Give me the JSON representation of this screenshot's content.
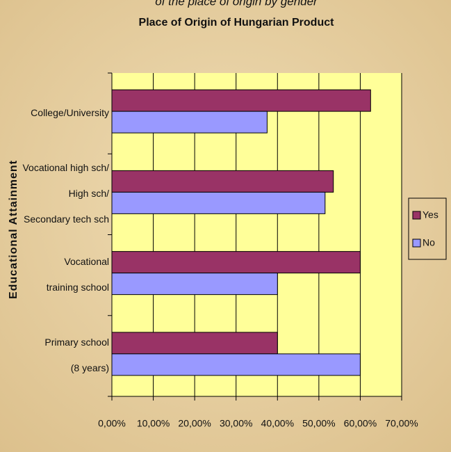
{
  "chart_data": {
    "type": "bar",
    "orientation": "horizontal",
    "subtitle": "of the place of origin by gender",
    "title": "Place of Origin of Hungarian Product",
    "y_label": "Educational Attainment",
    "categories": [
      [
        "College/University"
      ],
      [
        "Vocational high sch/",
        "High sch/",
        "Secondary tech sch"
      ],
      [
        "Vocational",
        "training school"
      ],
      [
        "Primary school",
        "(8 years)"
      ]
    ],
    "series": [
      {
        "name": "Yes",
        "color": "#993366",
        "values": [
          62.5,
          53.5,
          60,
          40
        ]
      },
      {
        "name": "No",
        "color": "#9999ff",
        "values": [
          37.5,
          51.5,
          40,
          60
        ]
      }
    ],
    "xlim": [
      0,
      70
    ],
    "xticks": [
      {
        "value": 0,
        "label": "0,00%"
      },
      {
        "value": 10,
        "label": "10,00%"
      },
      {
        "value": 20,
        "label": "20,00%"
      },
      {
        "value": 30,
        "label": "30,00%"
      },
      {
        "value": 40,
        "label": "40,00%"
      },
      {
        "value": 50,
        "label": "50,00%"
      },
      {
        "value": 60,
        "label": "60,00%"
      },
      {
        "value": 70,
        "label": "70,00%"
      }
    ],
    "grid": true,
    "legend": "right"
  }
}
